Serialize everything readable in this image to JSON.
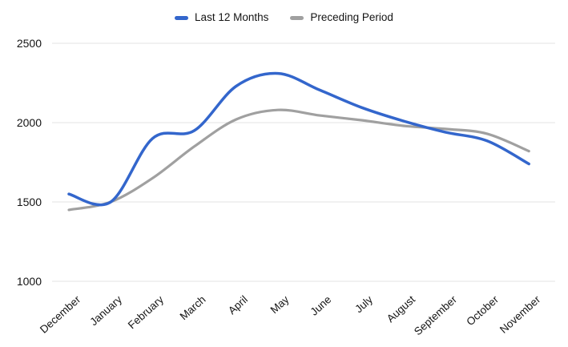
{
  "chart_data": {
    "type": "line",
    "smooth": true,
    "title": "",
    "xlabel": "",
    "ylabel": "",
    "grid": "horizontal-only",
    "legend_position": "top-center",
    "background_color": "#ffffff",
    "gridline_color": "#e3e3e3",
    "label_color": "#141414",
    "x": [
      "December",
      "January",
      "February",
      "March",
      "April",
      "May",
      "June",
      "July",
      "August",
      "September",
      "October",
      "November"
    ],
    "yticks": [
      2500,
      2000,
      1500,
      1000
    ],
    "ylim": [
      1000,
      2500
    ],
    "series": [
      {
        "name": "Last 12 Months",
        "color": "#3366cc",
        "values": [
          1550,
          1500,
          1900,
          1950,
          2230,
          2310,
          2205,
          2095,
          2010,
          1940,
          1885,
          1740
        ]
      },
      {
        "name": "Preceding Period",
        "color": "#a0a0a0",
        "values": [
          1450,
          1500,
          1650,
          1850,
          2020,
          2080,
          2045,
          2015,
          1980,
          1960,
          1930,
          1820
        ]
      }
    ]
  }
}
